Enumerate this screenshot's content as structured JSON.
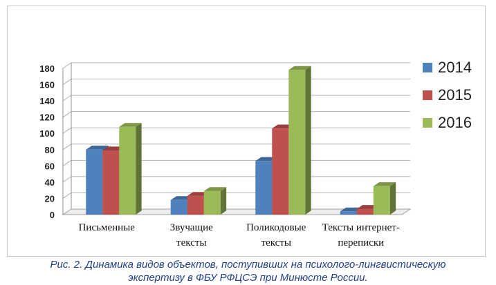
{
  "chart_data": {
    "type": "bar",
    "categories": [
      [
        "Письменные"
      ],
      [
        "Звучащие",
        "тексты"
      ],
      [
        "Поликодовые",
        "тексты"
      ],
      [
        "Тексты интернет-",
        "переписки"
      ]
    ],
    "series": [
      {
        "name": "2014",
        "color": "#4f81bd",
        "values": [
          80,
          18,
          66,
          4
        ]
      },
      {
        "name": "2015",
        "color": "#c0504d",
        "values": [
          79,
          23,
          106,
          7
        ]
      },
      {
        "name": "2016",
        "color": "#9bbb59",
        "values": [
          108,
          29,
          178,
          35
        ]
      }
    ],
    "ylim": [
      0,
      180
    ],
    "yticks": [
      0,
      20,
      40,
      60,
      80,
      100,
      120,
      140,
      160,
      180
    ],
    "grid": true,
    "legend_position": "right",
    "style": "3d"
  },
  "caption": {
    "line1": "Рис. 2. Динамика видов объектов, поступивших на психолого-лингвистическую",
    "line2": "экспертизу в ФБУ РФЦСЭ при Минюсте России."
  }
}
